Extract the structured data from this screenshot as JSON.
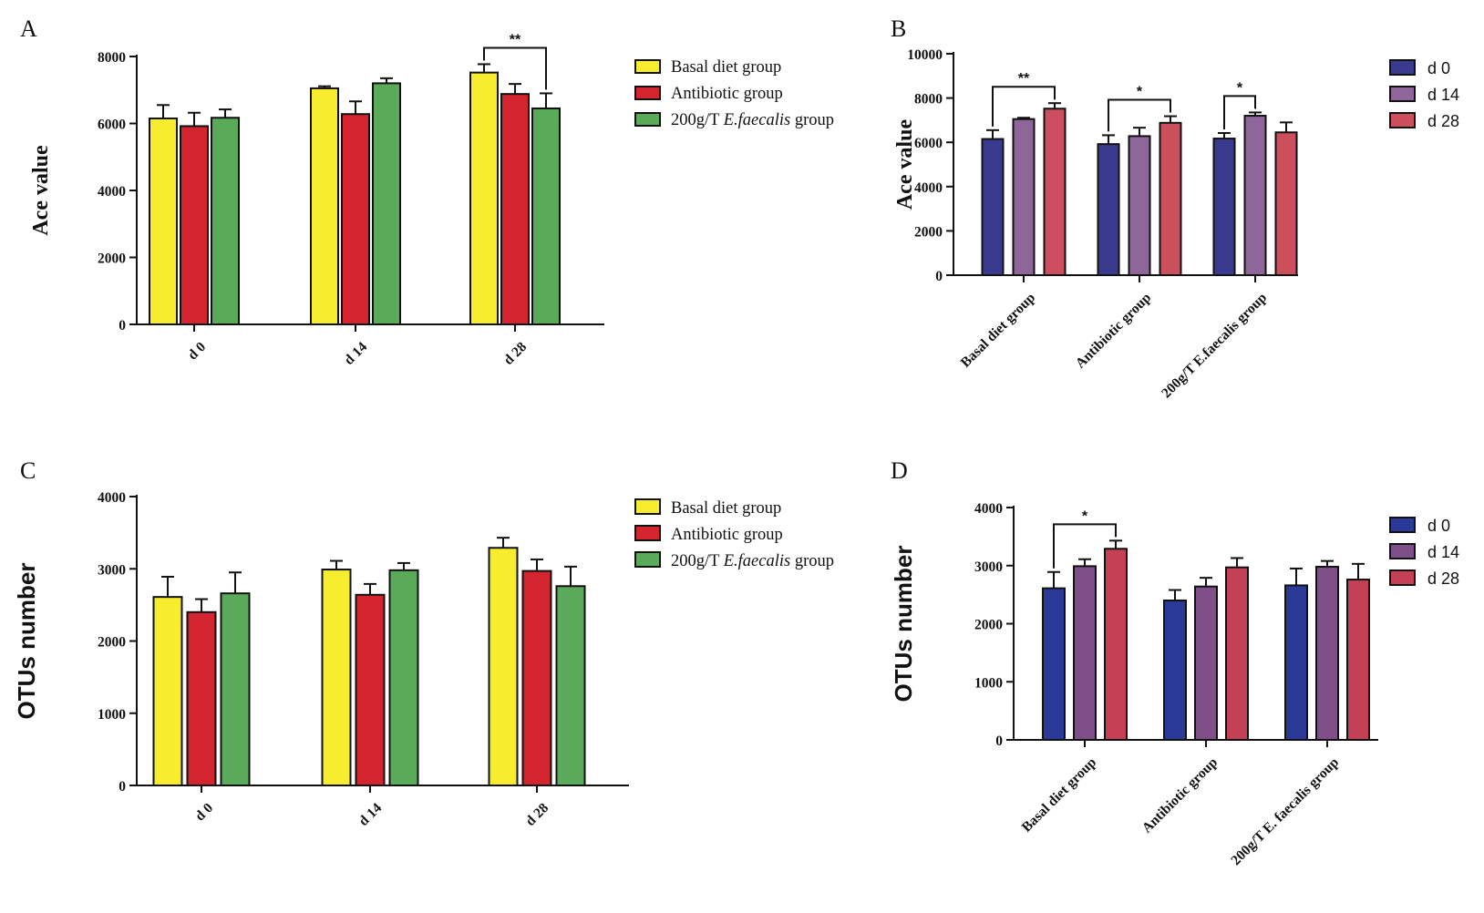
{
  "colors": {
    "basal": "#F7EC2E",
    "antibiotic": "#D42430",
    "efaecalis": "#5BAA5A",
    "d0": "#3A3A8E",
    "d14": "#8E6699",
    "d28": "#CC4F5E",
    "d0_D": "#2B3A96",
    "d14_D": "#7F4F8A",
    "d28_D": "#C44155",
    "axis": "#111111"
  },
  "chart_data": [
    {
      "panel": "A",
      "type": "bar",
      "ylabel": "Ace value",
      "ylim": [
        0,
        8000
      ],
      "yticks": [
        "0",
        "2000",
        "4000",
        "6000",
        "8000"
      ],
      "categories": [
        "d 0",
        "d 14",
        "d 28"
      ],
      "legend_position": "right",
      "series": [
        {
          "name": "Basal diet group",
          "values": [
            6150,
            7050,
            7520
          ],
          "errors": [
            400,
            60,
            250
          ],
          "color_key": "basal"
        },
        {
          "name": "Antibiotic group",
          "values": [
            5920,
            6280,
            6880
          ],
          "errors": [
            400,
            380,
            300
          ],
          "color_key": "antibiotic"
        },
        {
          "name": "200g/T E.faecalis group",
          "values": [
            6170,
            7200,
            6450
          ],
          "errors": [
            250,
            150,
            450
          ],
          "color_key": "efaecalis"
        }
      ],
      "legend_parts": [
        [
          {
            "t": "Basal diet group",
            "i": false
          }
        ],
        [
          {
            "t": "Antibiotic group",
            "i": false
          }
        ],
        [
          {
            "t": "200g/T ",
            "i": false
          },
          {
            "t": "E.faecalis",
            "i": true
          },
          {
            "t": " group",
            "i": false
          }
        ]
      ],
      "significance": [
        {
          "from": [
            2,
            0
          ],
          "to": [
            2,
            2
          ],
          "label": "**"
        }
      ]
    },
    {
      "panel": "B",
      "type": "bar",
      "ylabel": "Ace value",
      "ylim": [
        0,
        10000
      ],
      "yticks": [
        "0",
        "2000",
        "4000",
        "6000",
        "8000",
        "10000"
      ],
      "categories": [
        "Basal diet group",
        "Antibiotic group",
        "200g/T E.faecalis group"
      ],
      "legend_position": "right",
      "series": [
        {
          "name": "d 0",
          "values": [
            6150,
            5920,
            6170
          ],
          "errors": [
            400,
            400,
            250
          ],
          "color_key": "d0"
        },
        {
          "name": "d 14",
          "values": [
            7050,
            6280,
            7200
          ],
          "errors": [
            60,
            380,
            150
          ],
          "color_key": "d14"
        },
        {
          "name": "d 28",
          "values": [
            7520,
            6880,
            6450
          ],
          "errors": [
            250,
            300,
            450
          ],
          "color_key": "d28"
        }
      ],
      "significance": [
        {
          "from": [
            0,
            0
          ],
          "to": [
            0,
            2
          ],
          "label": "**"
        },
        {
          "from": [
            1,
            0
          ],
          "to": [
            1,
            2
          ],
          "label": "*"
        },
        {
          "from": [
            2,
            0
          ],
          "to": [
            2,
            1
          ],
          "label": "*"
        }
      ]
    },
    {
      "panel": "C",
      "type": "bar",
      "ylabel": "OTUs number",
      "ylim": [
        0,
        4000
      ],
      "yticks": [
        "0",
        "1000",
        "2000",
        "3000",
        "4000"
      ],
      "categories": [
        "d 0",
        "d 14",
        "d 28"
      ],
      "legend_position": "right",
      "series": [
        {
          "name": "Basal diet group",
          "values": [
            2610,
            2990,
            3290
          ],
          "errors": [
            280,
            120,
            140
          ],
          "color_key": "basal"
        },
        {
          "name": "Antibiotic group",
          "values": [
            2400,
            2640,
            2970
          ],
          "errors": [
            180,
            150,
            160
          ],
          "color_key": "antibiotic"
        },
        {
          "name": "200g/T E.faecalis group",
          "values": [
            2660,
            2980,
            2760
          ],
          "errors": [
            290,
            100,
            270
          ],
          "color_key": "efaecalis"
        }
      ],
      "legend_parts": [
        [
          {
            "t": "Basal diet group",
            "i": false
          }
        ],
        [
          {
            "t": "Antibiotic group",
            "i": false
          }
        ],
        [
          {
            "t": "200g/T ",
            "i": false
          },
          {
            "t": "E.faecalis",
            "i": true
          },
          {
            "t": " group",
            "i": false
          }
        ]
      ],
      "significance": []
    },
    {
      "panel": "D",
      "type": "bar",
      "ylabel": "OTUs number",
      "ylim": [
        0,
        4000
      ],
      "yticks": [
        "0",
        "1000",
        "2000",
        "3000",
        "4000"
      ],
      "categories": [
        "Basal diet group",
        "Antibiotic group",
        "200g/T E. faecalis group"
      ],
      "legend_position": "right",
      "series": [
        {
          "name": "d 0",
          "values": [
            2610,
            2400,
            2660
          ],
          "errors": [
            280,
            180,
            290
          ],
          "color_key": "d0_D"
        },
        {
          "name": "d 14",
          "values": [
            2990,
            2640,
            2980
          ],
          "errors": [
            120,
            150,
            100
          ],
          "color_key": "d14_D"
        },
        {
          "name": "d 28",
          "values": [
            3290,
            2970,
            2760
          ],
          "errors": [
            140,
            160,
            270
          ],
          "color_key": "d28_D"
        }
      ],
      "significance": [
        {
          "from": [
            0,
            0
          ],
          "to": [
            0,
            2
          ],
          "label": "*"
        }
      ]
    }
  ]
}
